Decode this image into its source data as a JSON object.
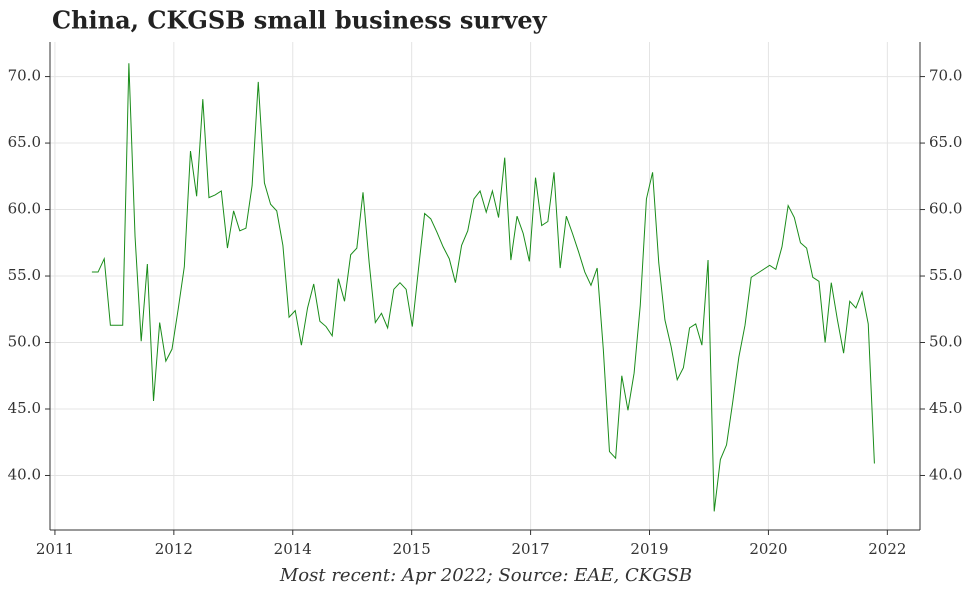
{
  "chart_data": {
    "type": "line",
    "title": "China, CKGSB small business survey",
    "footnote": "Most recent: Apr 2022; Source: EAE, CKGSB",
    "x": [
      0,
      1,
      2,
      3,
      4,
      5,
      6,
      7,
      8,
      9,
      10,
      11,
      12,
      13,
      14,
      15,
      16,
      17,
      18,
      19,
      20,
      21,
      22,
      23,
      24,
      25,
      26,
      27,
      28,
      29,
      30,
      31,
      32,
      33,
      34,
      35,
      36,
      37,
      38,
      39,
      40,
      41,
      42,
      43,
      44,
      45,
      46,
      47,
      48,
      49,
      50,
      51,
      52,
      53,
      54,
      55,
      56,
      57,
      58,
      59,
      60,
      61,
      62,
      63,
      64,
      65,
      66,
      67,
      68,
      69,
      70,
      71,
      72,
      73,
      74,
      75,
      76,
      77,
      78,
      79,
      80,
      81,
      82,
      83,
      84,
      85,
      86,
      87,
      88,
      89,
      90,
      91,
      92,
      93,
      94,
      95,
      96,
      97,
      98,
      99,
      100,
      101,
      102,
      103,
      104,
      105,
      106,
      107,
      108,
      109,
      110,
      111,
      112,
      113,
      114,
      115,
      116,
      117,
      118,
      119,
      120,
      121,
      122,
      123,
      124,
      125,
      126,
      127
    ],
    "series": [
      {
        "name": "CKGSB",
        "color": "#1a8c1a",
        "values": [
          55.3,
          55.3,
          56.3,
          51.3,
          51.3,
          51.3,
          71.0,
          58.0,
          50.1,
          55.9,
          45.6,
          51.5,
          48.6,
          49.5,
          52.5,
          55.7,
          64.4,
          61.0,
          68.3,
          60.9,
          61.1,
          61.4,
          57.1,
          59.9,
          58.4,
          58.6,
          61.8,
          69.6,
          62.0,
          60.4,
          59.9,
          57.3,
          51.9,
          52.4,
          49.8,
          52.6,
          54.4,
          51.6,
          51.2,
          50.5,
          54.8,
          53.1,
          56.6,
          57.1,
          61.3,
          56.0,
          51.5,
          52.2,
          51.1,
          54.0,
          54.5,
          54.0,
          51.2,
          55.5,
          59.7,
          59.3,
          58.3,
          57.2,
          56.3,
          54.5,
          57.3,
          58.4,
          60.8,
          61.4,
          59.8,
          61.4,
          59.4,
          63.9,
          56.2,
          59.5,
          58.2,
          56.1,
          62.4,
          58.8,
          59.1,
          62.8,
          55.6,
          59.5,
          58.2,
          56.8,
          55.3,
          54.3,
          55.6,
          49.5,
          41.8,
          41.3,
          47.5,
          44.9,
          47.7,
          52.8,
          60.8,
          62.8,
          56.0,
          51.7,
          49.7,
          47.2,
          48.1,
          51.1,
          51.4,
          49.8,
          56.2,
          37.3,
          41.2,
          42.3,
          45.5,
          48.9,
          51.3,
          54.9,
          55.2,
          55.5,
          55.8,
          55.5,
          57.2,
          60.3,
          59.4,
          57.5,
          57.1,
          54.9,
          54.6,
          50.0,
          54.5,
          51.7,
          49.2,
          53.1,
          52.6,
          53.8,
          51.4,
          40.9
        ]
      }
    ],
    "xlim": [
      -6.8,
      134.4
    ],
    "xticks": [
      {
        "value": -6,
        "label": "2011"
      },
      {
        "value": 13.3,
        "label": "2012"
      },
      {
        "value": 32.6,
        "label": "2014"
      },
      {
        "value": 51.9,
        "label": "2015"
      },
      {
        "value": 71.2,
        "label": "2017"
      },
      {
        "value": 90.5,
        "label": "2019"
      },
      {
        "value": 109.8,
        "label": "2020"
      },
      {
        "value": 129.1,
        "label": "2022"
      }
    ],
    "ylim": [
      35.9,
      72.6
    ],
    "yticks": [
      {
        "value": 40,
        "label": "40.0"
      },
      {
        "value": 45,
        "label": "45.0"
      },
      {
        "value": 50,
        "label": "50.0"
      },
      {
        "value": 55,
        "label": "55.0"
      },
      {
        "value": 60,
        "label": "60.0"
      },
      {
        "value": 65,
        "label": "65.0"
      },
      {
        "value": 70,
        "label": "70.0"
      }
    ],
    "grid": true
  }
}
